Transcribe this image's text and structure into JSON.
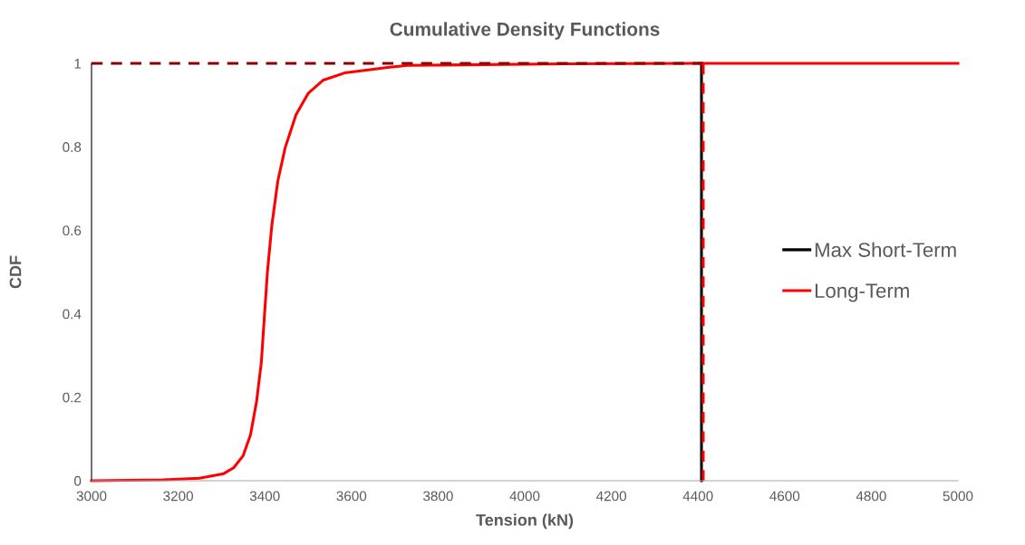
{
  "chart_data": {
    "type": "line",
    "title": "Cumulative Density Functions",
    "xlabel": "Tension (kN)",
    "ylabel": "CDF",
    "xlim": [
      3000,
      5000
    ],
    "xticks": [
      3000,
      3200,
      3400,
      3600,
      3800,
      4000,
      4200,
      4400,
      4600,
      4800,
      5000
    ],
    "ylim": [
      0,
      1
    ],
    "yticks": [
      0,
      0.2,
      0.4,
      0.6,
      0.8,
      1
    ],
    "grid": false,
    "legend": "right",
    "marker": "none",
    "series": [
      {
        "name": "Max Short-Term",
        "color": "#000000",
        "x": [
          4408,
          4408
        ],
        "values": [
          0,
          1
        ]
      },
      {
        "name": "Long-Term",
        "color": "#ff0000",
        "x": [
          3000,
          3165,
          3249,
          3305,
          3328,
          3350,
          3367,
          3381,
          3392,
          3399,
          3406,
          3416,
          3430,
          3447,
          3472,
          3500,
          3535,
          3584,
          3688,
          3730,
          3900,
          4100,
          4408,
          5000
        ],
        "values": [
          0,
          0.002,
          0.006,
          0.017,
          0.031,
          0.06,
          0.11,
          0.19,
          0.284,
          0.393,
          0.5,
          0.61,
          0.718,
          0.798,
          0.877,
          0.928,
          0.96,
          0.977,
          0.991,
          0.995,
          0.997,
          0.999,
          1,
          1
        ]
      },
      {
        "color": "#8b0000",
        "line_style": "dashed",
        "x": [
          3000,
          4412
        ],
        "values": [
          1,
          1
        ]
      },
      {
        "color": "#ff0000",
        "line_style": "dashed",
        "x": [
          4412,
          4412
        ],
        "values": [
          1,
          0
        ]
      }
    ]
  }
}
